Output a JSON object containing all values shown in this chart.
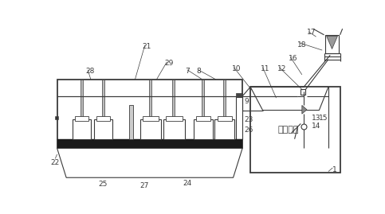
{
  "bg": "#ffffff",
  "lc": "#3a3a3a",
  "tc": "#3a3a3a",
  "fw": 4.83,
  "fh": 2.69,
  "dpi": 100,
  "zh": "铝电解槽"
}
